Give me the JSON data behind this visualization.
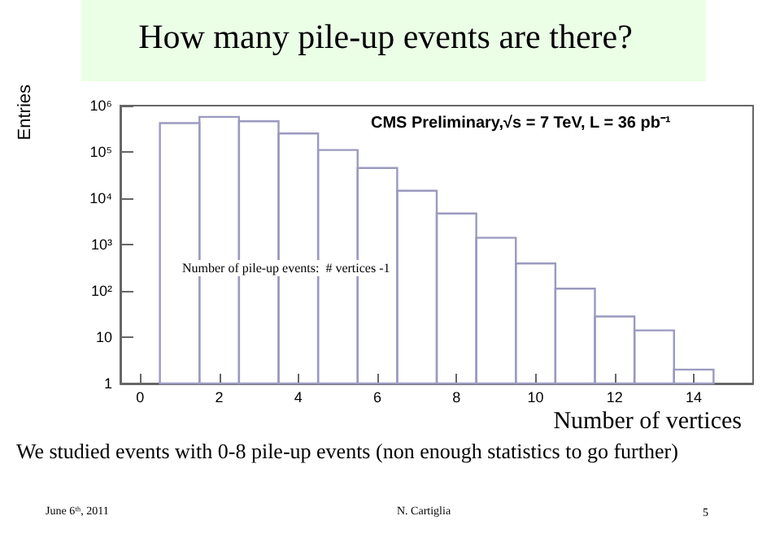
{
  "chart_data": {
    "type": "histogram",
    "title": "How many pile-up events are there?",
    "xlabel": "Number of vertices",
    "ylabel": "Entries",
    "bins": [
      0.5,
      1.5,
      2.5,
      3.5,
      4.5,
      5.5,
      6.5,
      7.5,
      8.5,
      9.5,
      10.5,
      11.5,
      12.5,
      13.5,
      14.5
    ],
    "values": [
      420000,
      570000,
      460000,
      250000,
      110000,
      45000,
      14500,
      4700,
      1400,
      390,
      112,
      28,
      14,
      2
    ],
    "color": "#9a9ac0",
    "log": "y",
    "xlim": [
      -0.5,
      15.5
    ],
    "xticks": [
      0,
      2,
      4,
      6,
      8,
      10,
      12,
      14
    ],
    "ylim": [
      1,
      1000000
    ],
    "yticks": [
      1,
      10,
      {
        "value": 100,
        "label": "10²"
      },
      {
        "value": 1000,
        "label": "10³"
      },
      {
        "value": 10000,
        "label": "10⁴"
      },
      {
        "value": 100000,
        "label": "10⁵"
      },
      {
        "value": 1000000,
        "label": "10⁶"
      }
    ],
    "grid": false,
    "annotations": [
      "CMS Preliminary,√s = 7 TeV, L = 36 pb⁻¹",
      "Number of pile-up events:  # vertices -1",
      "We studied events with 0-8 pile-up events (non enough statistics to go further)",
      "June 6ᵗʰ, 2011",
      "N. Cartiglia",
      "5"
    ]
  }
}
